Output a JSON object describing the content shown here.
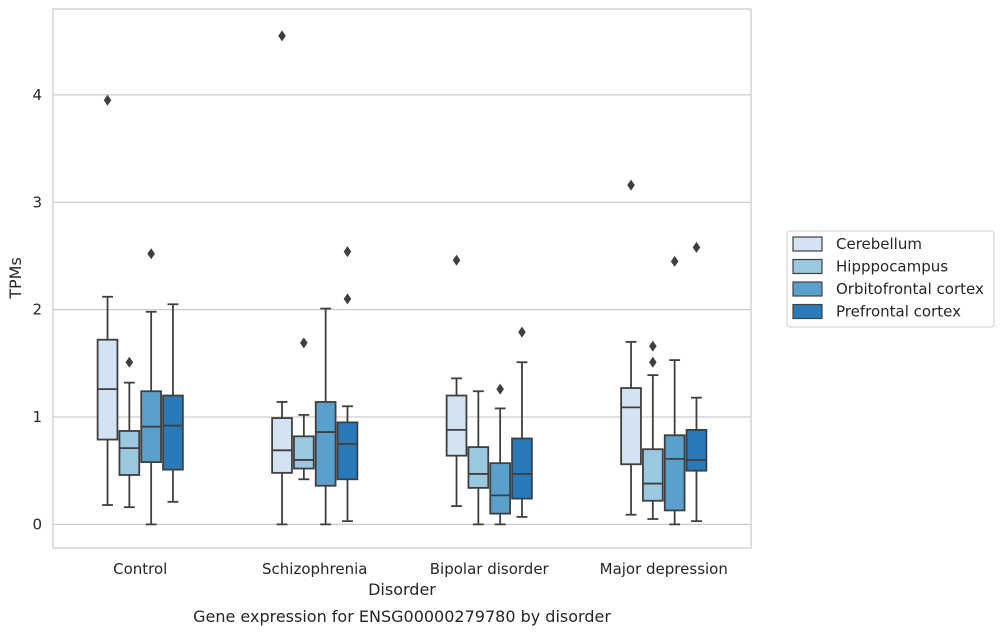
{
  "chart_data": {
    "type": "box",
    "title": "",
    "caption": "Gene expression for ENSG00000279780 by disorder",
    "xlabel": "Disorder",
    "ylabel": "TPMs",
    "ylim": [
      -0.22,
      4.8
    ],
    "yticks": [
      "0",
      "1",
      "2",
      "3",
      "4"
    ],
    "grid": "horizontal",
    "legend_position": "right",
    "categories": [
      "Control",
      "Schizophrenia",
      "Bipolar disorder",
      "Major depression"
    ],
    "series": [
      {
        "name": "Cerebellum",
        "color": "#d3e3f3",
        "boxes": [
          {
            "whisker_low": 0.18,
            "q1": 0.79,
            "median": 1.26,
            "q3": 1.72,
            "whisker_high": 2.12,
            "outliers": [
              3.95
            ]
          },
          {
            "whisker_low": 0.0,
            "q1": 0.48,
            "median": 0.69,
            "q3": 0.99,
            "whisker_high": 1.14,
            "outliers": [
              4.55
            ]
          },
          {
            "whisker_low": 0.17,
            "q1": 0.64,
            "median": 0.88,
            "q3": 1.2,
            "whisker_high": 1.36,
            "outliers": [
              2.46
            ]
          },
          {
            "whisker_low": 0.09,
            "q1": 0.56,
            "median": 1.09,
            "q3": 1.27,
            "whisker_high": 1.7,
            "outliers": [
              3.16
            ]
          }
        ]
      },
      {
        "name": "Hipppocampus",
        "color": "#9ac8e0",
        "boxes": [
          {
            "whisker_low": 0.16,
            "q1": 0.46,
            "median": 0.71,
            "q3": 0.87,
            "whisker_high": 1.32,
            "outliers": [
              1.51
            ]
          },
          {
            "whisker_low": 0.42,
            "q1": 0.52,
            "median": 0.6,
            "q3": 0.82,
            "whisker_high": 1.02,
            "outliers": [
              1.69
            ]
          },
          {
            "whisker_low": 0.0,
            "q1": 0.34,
            "median": 0.47,
            "q3": 0.72,
            "whisker_high": 1.24,
            "outliers": []
          },
          {
            "whisker_low": 0.05,
            "q1": 0.22,
            "median": 0.38,
            "q3": 0.7,
            "whisker_high": 1.39,
            "outliers": [
              1.51,
              1.66
            ]
          }
        ]
      },
      {
        "name": "Orbitofrontal cortex",
        "color": "#5aa0cd",
        "boxes": [
          {
            "whisker_low": 0.0,
            "q1": 0.58,
            "median": 0.91,
            "q3": 1.24,
            "whisker_high": 1.98,
            "outliers": [
              2.52
            ]
          },
          {
            "whisker_low": 0.0,
            "q1": 0.36,
            "median": 0.86,
            "q3": 1.14,
            "whisker_high": 2.01,
            "outliers": []
          },
          {
            "whisker_low": 0.0,
            "q1": 0.1,
            "median": 0.27,
            "q3": 0.57,
            "whisker_high": 1.08,
            "outliers": [
              1.26
            ]
          },
          {
            "whisker_low": 0.0,
            "q1": 0.13,
            "median": 0.61,
            "q3": 0.83,
            "whisker_high": 1.53,
            "outliers": [
              2.45
            ]
          }
        ]
      },
      {
        "name": "Prefrontal cortex",
        "color": "#2a7ab9",
        "boxes": [
          {
            "whisker_low": 0.21,
            "q1": 0.51,
            "median": 0.92,
            "q3": 1.2,
            "whisker_high": 2.05,
            "outliers": []
          },
          {
            "whisker_low": 0.03,
            "q1": 0.42,
            "median": 0.75,
            "q3": 0.95,
            "whisker_high": 1.1,
            "outliers": [
              2.1,
              2.54
            ]
          },
          {
            "whisker_low": 0.07,
            "q1": 0.24,
            "median": 0.47,
            "q3": 0.8,
            "whisker_high": 1.51,
            "outliers": [
              1.79
            ]
          },
          {
            "whisker_low": 0.03,
            "q1": 0.5,
            "median": 0.6,
            "q3": 0.88,
            "whisker_high": 1.18,
            "outliers": [
              2.58
            ]
          }
        ]
      }
    ]
  }
}
